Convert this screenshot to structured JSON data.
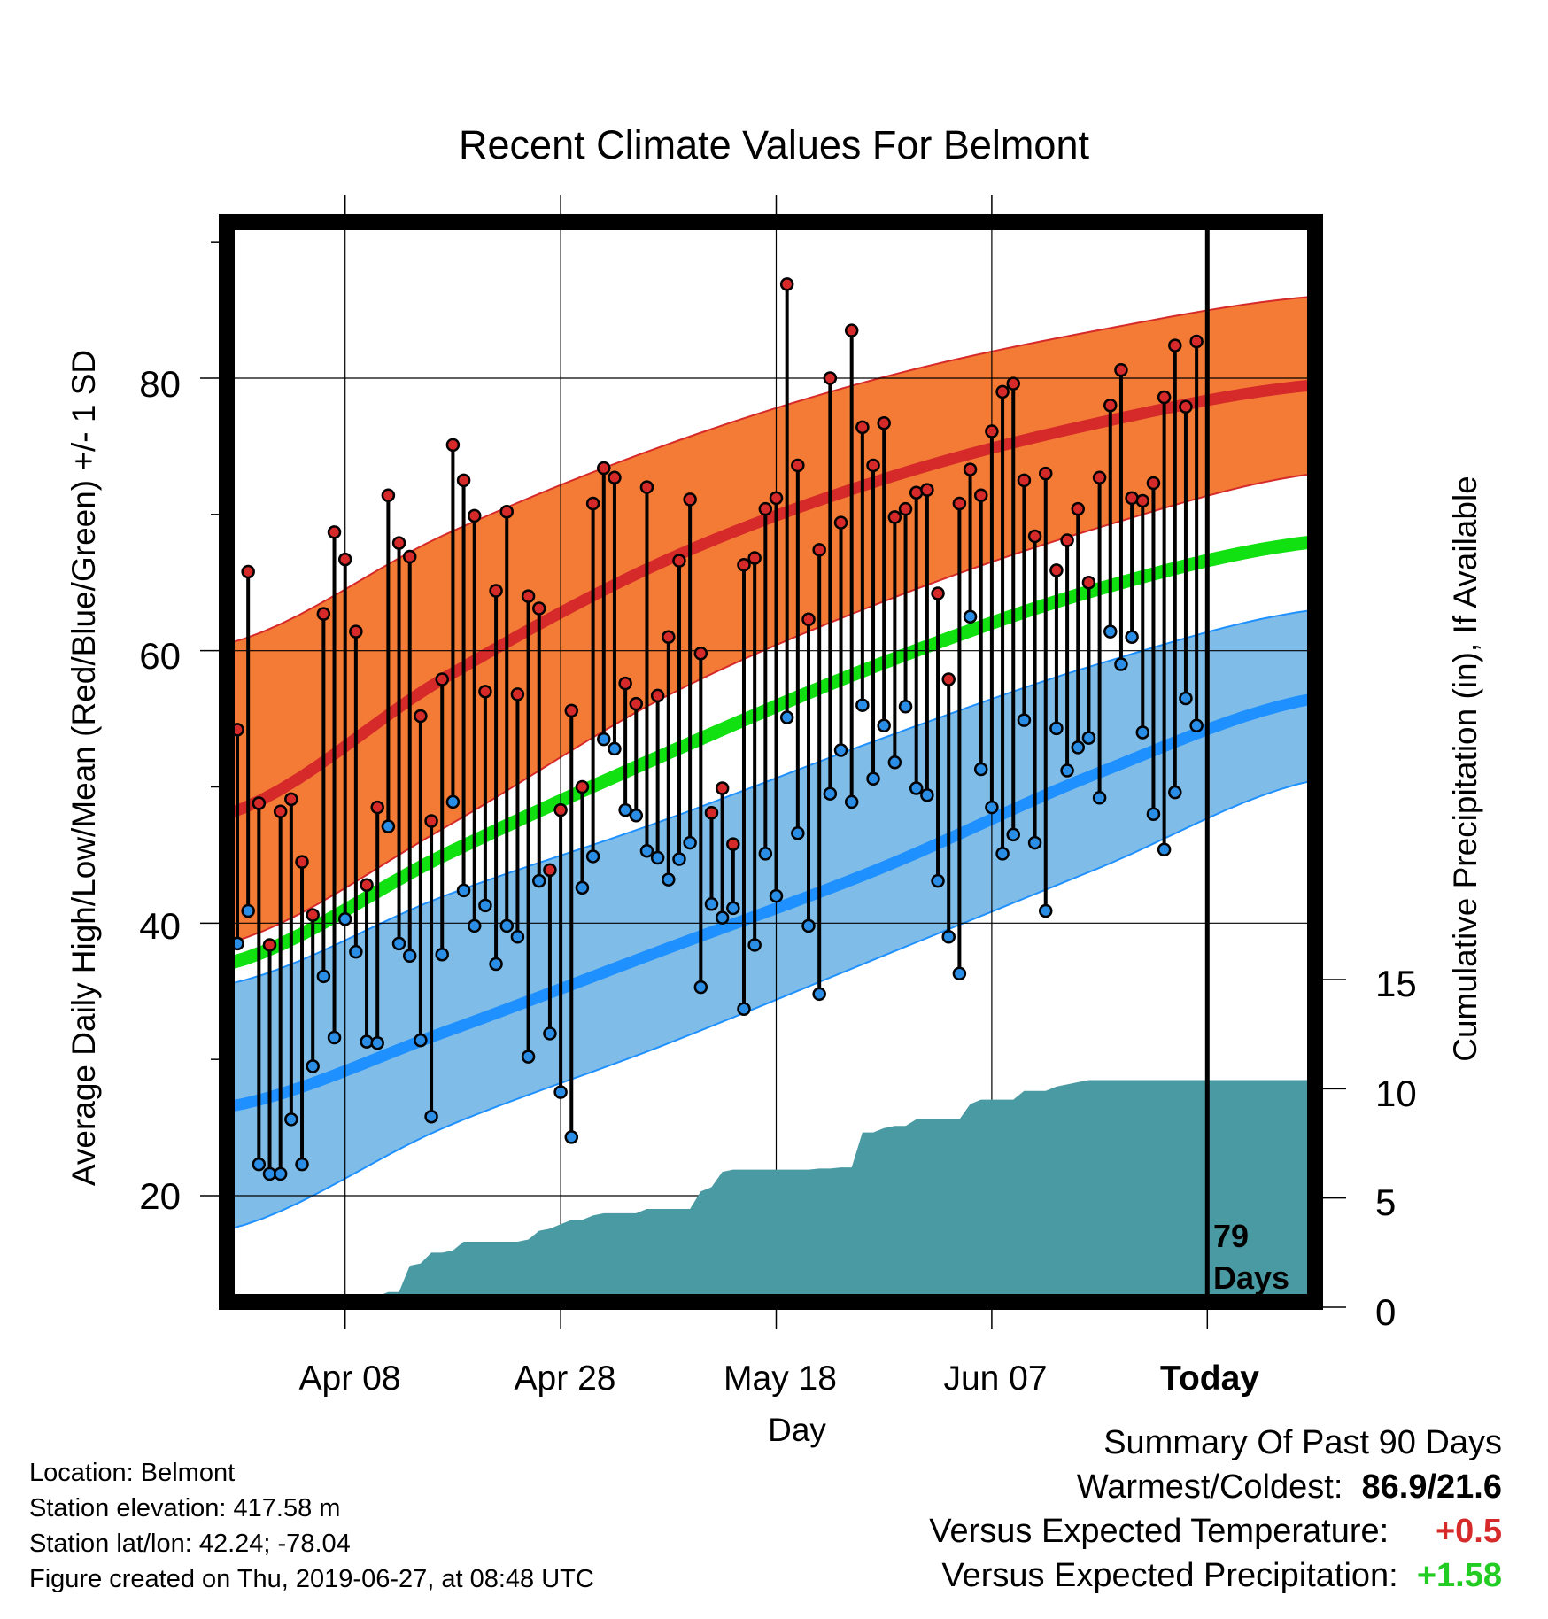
{
  "title": "Recent Climate Values For Belmont",
  "xlabel": "Day",
  "ylabel_left": "Average Daily High/Low/Mean (Red/Blue/Green) +/- 1 SD",
  "ylabel_right": "Cumulative Precipitation (in), If Available",
  "days_label": [
    "79",
    "Days"
  ],
  "x_ticks": [
    "Apr 08",
    "Apr 28",
    "May 18",
    "Jun 07",
    "Today"
  ],
  "y_ticks": [
    "20",
    "40",
    "60",
    "80"
  ],
  "precip_ticks": [
    "0",
    "5",
    "10",
    "15"
  ],
  "info": {
    "location": "Location: Belmont",
    "elevation": "Station elevation: 417.58 m",
    "latlon": "Station lat/lon: 42.24; -78.04",
    "created": "Figure created on Thu, 2019-06-27, at 08:48 UTC"
  },
  "summary": {
    "heading": "Summary Of Past 90 Days",
    "warmest_label": "Warmest/Coldest:",
    "warmest_value": "86.9/21.6",
    "temp_label": "Versus Expected Temperature:",
    "temp_value": "+0.5",
    "precip_label": "Versus Expected Precipitation:",
    "precip_value": "+1.58"
  },
  "colors": {
    "high_band": "#f37b35",
    "high_mean": "#d62a2a",
    "low_band": "#7fbde8",
    "low_mean": "#1e90ff",
    "mean": "#11e011",
    "precip": "#4a9aa3",
    "point_high": "#d62a2a",
    "point_low": "#2a8ee6",
    "temp_value": "#d62a2a",
    "precip_value": "#22cc22"
  },
  "chart_data": {
    "type": "line",
    "x_start": "Mar 29",
    "day_count": 100,
    "today_index": 90,
    "ylim": [
      12,
      92
    ],
    "precip_ylim": [
      0,
      15
    ],
    "normal_high": [
      48,
      58,
      66.5,
      72.5,
      76.7,
      79.5
    ],
    "high_band_upper": [
      60.5,
      68.5,
      75,
      80,
      83.5,
      86
    ],
    "high_band_lower": [
      38.5,
      47,
      56.5,
      63.5,
      69,
      73
    ],
    "normal_low": [
      26.5,
      32,
      38,
      44,
      51,
      56.5
    ],
    "low_band_upper": [
      35.5,
      42,
      47.5,
      53.5,
      59,
      63
    ],
    "low_band_lower": [
      17.5,
      25,
      31,
      37.5,
      44,
      50.5
    ],
    "normal_mean": [
      37,
      45,
      52.3,
      59,
      64.5,
      68
    ],
    "highs": [
      54.2,
      65.8,
      48.8,
      38.4,
      48.2,
      49.1,
      44.5,
      40.6,
      62.7,
      68.7,
      66.7,
      61.4,
      42.8,
      48.5,
      71.4,
      67.9,
      66.9,
      55.2,
      47.5,
      57.9,
      75.1,
      72.5,
      69.9,
      57.0,
      64.4,
      70.2,
      56.8,
      64.0,
      63.1,
      43.9,
      48.3,
      55.6,
      50.0,
      70.8,
      73.4,
      72.7,
      57.6,
      56.1,
      72.0,
      56.7,
      61.0,
      66.6,
      71.1,
      59.8,
      48.1,
      49.9,
      45.8,
      66.3,
      66.8,
      70.4,
      71.2,
      86.9,
      73.6,
      62.3,
      67.4,
      80.0,
      69.4,
      83.5,
      76.4,
      73.6,
      76.7,
      69.8,
      70.4,
      71.6,
      71.8,
      64.2,
      57.9,
      70.8,
      73.3,
      71.4,
      76.1,
      79.0,
      79.6,
      72.5,
      68.4,
      73.0,
      65.9,
      68.1,
      70.4,
      65.0,
      72.7,
      78.0,
      80.6,
      71.2,
      71.0,
      72.3,
      78.6,
      82.4,
      77.9,
      82.7
    ],
    "lows": [
      38.5,
      40.9,
      22.3,
      21.6,
      21.6,
      25.6,
      22.3,
      29.5,
      36.1,
      31.6,
      40.3,
      37.9,
      31.3,
      31.2,
      47.1,
      38.5,
      37.6,
      31.4,
      25.8,
      37.7,
      48.9,
      42.4,
      39.8,
      41.3,
      37.0,
      39.8,
      39.0,
      30.2,
      43.1,
      31.9,
      27.6,
      24.3,
      42.6,
      44.9,
      53.5,
      52.8,
      48.3,
      47.9,
      45.3,
      44.8,
      43.2,
      44.7,
      45.9,
      35.3,
      41.4,
      40.4,
      41.1,
      33.7,
      38.4,
      45.1,
      42.0,
      55.1,
      46.6,
      39.8,
      34.8,
      49.5,
      52.7,
      48.9,
      56.0,
      50.6,
      54.5,
      51.8,
      55.9,
      49.9,
      49.4,
      43.1,
      39.0,
      36.3,
      62.5,
      51.3,
      48.5,
      45.1,
      46.5,
      54.9,
      45.9,
      40.9,
      54.3,
      51.2,
      52.9,
      53.6,
      49.2,
      61.4,
      59.0,
      61.0,
      54.0,
      48.0,
      45.4,
      49.6,
      56.5,
      54.5
    ],
    "precip_cumulative": [
      0.05,
      0.2,
      0.2,
      0.2,
      0.2,
      0.2,
      0.2,
      0.45,
      0.45,
      0.5,
      0.5,
      0.5,
      0.5,
      0.5,
      0.7,
      0.7,
      1.9,
      2.0,
      2.5,
      2.5,
      2.6,
      3.0,
      3.0,
      3.0,
      3.0,
      3.0,
      3.0,
      3.1,
      3.5,
      3.6,
      3.8,
      4.0,
      4.0,
      4.2,
      4.3,
      4.3,
      4.3,
      4.3,
      4.5,
      4.5,
      4.5,
      4.5,
      4.5,
      5.3,
      5.5,
      6.2,
      6.3,
      6.3,
      6.3,
      6.3,
      6.3,
      6.3,
      6.3,
      6.3,
      6.35,
      6.35,
      6.4,
      6.4,
      8.0,
      8.0,
      8.2,
      8.3,
      8.3,
      8.6,
      8.6,
      8.6,
      8.6,
      8.6,
      9.3,
      9.5,
      9.5,
      9.5,
      9.5,
      9.9,
      9.9,
      9.9,
      10.1,
      10.2,
      10.3,
      10.4,
      10.4,
      10.4,
      10.4,
      10.4,
      10.4,
      10.4,
      10.4,
      10.4,
      10.4,
      10.4,
      10.4,
      10.4,
      10.4,
      10.4,
      10.4,
      10.4,
      10.4,
      10.4,
      10.4,
      10.4
    ]
  }
}
